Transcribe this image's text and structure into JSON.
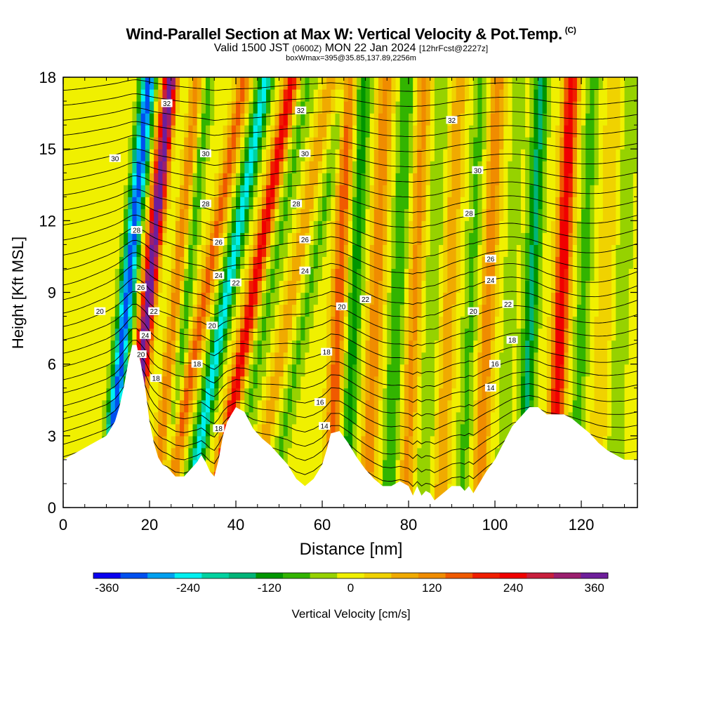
{
  "title": {
    "main": "Wind-Parallel Section at Max W: Vertical Velocity & Pot.Temp.",
    "copyright": "(C)",
    "valid_prefix": "Valid 1500 JST",
    "valid_utc": "(0600Z)",
    "valid_date": "MON 22 Jan 2024",
    "forecast": "[12hrFcst@2227z]",
    "box_info": "boxWmax=395@35.85,137.89,2256m"
  },
  "colors": {
    "terrain": "#ffffff",
    "contour_line": "#000000",
    "frame": "#000000",
    "scale": [
      "#0a00f0",
      "#0050f0",
      "#00a0f0",
      "#00f0f0",
      "#00d2a0",
      "#00b478",
      "#009600",
      "#32b400",
      "#96d200",
      "#f0f000",
      "#f0d200",
      "#f0aa00",
      "#f08c00",
      "#f05a00",
      "#f01e00",
      "#f00000",
      "#c81e3c",
      "#9b1e6e",
      "#6e1e9b"
    ]
  },
  "chart_data": {
    "type": "heatmap",
    "xlabel": "Distance [nm]",
    "ylabel": "Height [Kft MSL]",
    "xlim": [
      0,
      133
    ],
    "ylim": [
      0,
      18
    ],
    "x_ticks": [
      "0",
      "20",
      "40",
      "60",
      "80",
      "100",
      "120"
    ],
    "y_ticks": [
      "0",
      "3",
      "6",
      "9",
      "12",
      "15",
      "18"
    ],
    "colorbar": {
      "label": "Vertical Velocity [cm/s]",
      "ticks": [
        "-360",
        "-240",
        "-120",
        "0",
        "120",
        "240",
        "360"
      ],
      "range": [
        -380,
        380
      ]
    },
    "terrain_profile": {
      "x": [
        0,
        5,
        8,
        10,
        11,
        12,
        13,
        14,
        15,
        16,
        17,
        18,
        19,
        20,
        21,
        22,
        23,
        24,
        26,
        28,
        30,
        31,
        32,
        33,
        34,
        35,
        36,
        37,
        38,
        40,
        42,
        44,
        46,
        48,
        50,
        52,
        54,
        56,
        58,
        60,
        61,
        62,
        64,
        66,
        68,
        70,
        72,
        74,
        76,
        78,
        80,
        81,
        82,
        83,
        84,
        85,
        86,
        88,
        90,
        92,
        93,
        94,
        95,
        96,
        98,
        100,
        102,
        104,
        106,
        108,
        110,
        112,
        114,
        116,
        118,
        120,
        122,
        124,
        126,
        128,
        130,
        133
      ],
      "height_kft": [
        2,
        2.5,
        2.8,
        3,
        3.3,
        3.6,
        4.2,
        5,
        6,
        6.8,
        6.8,
        6,
        5,
        3.6,
        2.7,
        2.1,
        1.8,
        1.7,
        1.3,
        1.3,
        1.7,
        1.9,
        2.2,
        1.9,
        1.5,
        1.3,
        2,
        3,
        3.6,
        4.2,
        4,
        3.3,
        2.9,
        2.6,
        2.2,
        1.8,
        1.2,
        0.9,
        1.2,
        1.8,
        2.4,
        3.1,
        3.2,
        2.7,
        2.1,
        1.6,
        1.2,
        0.9,
        0.9,
        1.1,
        0.9,
        0.5,
        0.9,
        0.5,
        0.7,
        0.6,
        0.3,
        0.6,
        0.9,
        0.9,
        0.7,
        0.9,
        0.6,
        0.9,
        1.5,
        2,
        2.7,
        3.4,
        3.8,
        4.2,
        4.2,
        3.9,
        3.9,
        3.9,
        3.7,
        3.4,
        3.1,
        2.7,
        2.4,
        2.2,
        2,
        2
      ]
    },
    "vertical_velocity_bands": [
      {
        "x": 16,
        "value": -330
      },
      {
        "x": 21,
        "value": 380
      },
      {
        "x": 24,
        "value": -20
      },
      {
        "x": 27.5,
        "value": 140
      },
      {
        "x": 29.5,
        "value": -100
      },
      {
        "x": 35,
        "value": 170
      },
      {
        "x": 40,
        "value": -230
      },
      {
        "x": 46,
        "value": 230
      },
      {
        "x": 50,
        "value": -70
      },
      {
        "x": 55,
        "value": 90
      },
      {
        "x": 59,
        "value": -70
      },
      {
        "x": 64.5,
        "value": 170
      },
      {
        "x": 68,
        "value": -120
      },
      {
        "x": 73,
        "value": 130
      },
      {
        "x": 78,
        "value": -100
      },
      {
        "x": 82,
        "value": 110
      },
      {
        "x": 86,
        "value": -60
      },
      {
        "x": 90,
        "value": 90
      },
      {
        "x": 95,
        "value": -70
      },
      {
        "x": 99,
        "value": 130
      },
      {
        "x": 104,
        "value": -40
      },
      {
        "x": 109,
        "value": -150
      },
      {
        "x": 116,
        "value": 260
      },
      {
        "x": 121,
        "value": -80
      },
      {
        "x": 126,
        "value": 60
      },
      {
        "x": 130,
        "value": -60
      }
    ],
    "theta_contour_labels": [
      {
        "value": "32",
        "x": 24,
        "y": 16.9
      },
      {
        "value": "32",
        "x": 55,
        "y": 16.6
      },
      {
        "value": "32",
        "x": 90,
        "y": 16.2
      },
      {
        "value": "30",
        "x": 12,
        "y": 14.6
      },
      {
        "value": "30",
        "x": 33,
        "y": 14.8
      },
      {
        "value": "30",
        "x": 56,
        "y": 14.8
      },
      {
        "value": "30",
        "x": 96,
        "y": 14.1
      },
      {
        "value": "28",
        "x": 33,
        "y": 12.7
      },
      {
        "value": "28",
        "x": 54,
        "y": 12.7
      },
      {
        "value": "28",
        "x": 94,
        "y": 12.3
      },
      {
        "value": "28",
        "x": 17,
        "y": 11.6
      },
      {
        "value": "26",
        "x": 36,
        "y": 11.1
      },
      {
        "value": "26",
        "x": 56,
        "y": 11.2
      },
      {
        "value": "26",
        "x": 99,
        "y": 10.4
      },
      {
        "value": "26",
        "x": 18,
        "y": 9.2
      },
      {
        "value": "24",
        "x": 36,
        "y": 9.7
      },
      {
        "value": "24",
        "x": 56,
        "y": 9.9
      },
      {
        "value": "24",
        "x": 99,
        "y": 9.5
      },
      {
        "value": "24",
        "x": 19,
        "y": 7.2
      },
      {
        "value": "22",
        "x": 40,
        "y": 9.4
      },
      {
        "value": "22",
        "x": 70,
        "y": 8.7
      },
      {
        "value": "22",
        "x": 103,
        "y": 8.5
      },
      {
        "value": "22",
        "x": 21,
        "y": 8.2
      },
      {
        "value": "20",
        "x": 8.5,
        "y": 8.2
      },
      {
        "value": "20",
        "x": 34.5,
        "y": 7.6
      },
      {
        "value": "20",
        "x": 64.5,
        "y": 8.4
      },
      {
        "value": "20",
        "x": 95,
        "y": 8.2
      },
      {
        "value": "20",
        "x": 18,
        "y": 6.4
      },
      {
        "value": "18",
        "x": 61,
        "y": 6.5
      },
      {
        "value": "18",
        "x": 104,
        "y": 7
      },
      {
        "value": "18",
        "x": 31,
        "y": 6
      },
      {
        "value": "18",
        "x": 21.5,
        "y": 5.4
      },
      {
        "value": "18",
        "x": 36,
        "y": 3.3
      },
      {
        "value": "16",
        "x": 100,
        "y": 6
      },
      {
        "value": "16",
        "x": 59.5,
        "y": 4.4
      },
      {
        "value": "14",
        "x": 99,
        "y": 5
      },
      {
        "value": "14",
        "x": 60.5,
        "y": 3.4
      }
    ]
  }
}
